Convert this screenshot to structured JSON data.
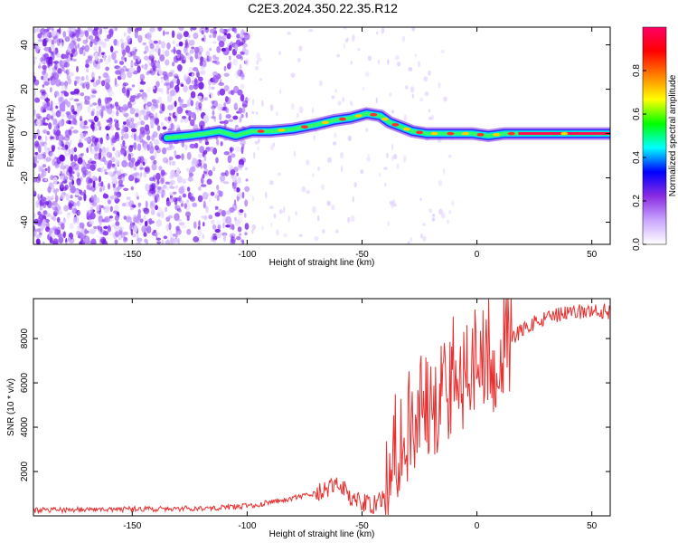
{
  "figure": {
    "title": "C2E3.2024.350.22.35.R12"
  },
  "chart_data": [
    {
      "type": "heatmap",
      "xlabel": "Height of straight line (km)",
      "ylabel": "Frequency (Hz)",
      "xlim": [
        -193,
        58
      ],
      "ylim": [
        -50,
        48
      ],
      "xticks": [
        -150,
        -100,
        -50,
        0,
        50
      ],
      "yticks": [
        -40,
        -20,
        0,
        20,
        40
      ],
      "colorbar": {
        "label": "Normalized spectral amplitude",
        "range": [
          0,
          1
        ],
        "ticks": [
          "0.0",
          "0.2",
          "0.4",
          "0.6",
          "0.8"
        ],
        "colors": [
          "#ffffff",
          "#c9a6ff",
          "#8a2be2",
          "#0000ff",
          "#00ffff",
          "#00ff00",
          "#ffff00",
          "#ff8000",
          "#ff0000",
          "#ff0066"
        ]
      },
      "ridge": {
        "x": [
          -135,
          -125,
          -118,
          -112,
          -105,
          -98,
          -90,
          -80,
          -70,
          -62,
          -55,
          -48,
          -42,
          -38,
          -33,
          -28,
          -22,
          -15,
          -8,
          -2,
          5,
          12,
          18,
          58
        ],
        "y": [
          -2,
          -1,
          0,
          1,
          -1,
          1,
          1,
          2,
          4,
          6,
          7,
          9,
          8,
          5,
          3,
          1,
          0,
          0,
          0,
          0,
          -1,
          0,
          0,
          0
        ]
      },
      "noise_region": {
        "x": [
          -193,
          -100
        ],
        "y": [
          -50,
          48
        ]
      }
    },
    {
      "type": "line",
      "xlabel": "Height of straight line (km)",
      "ylabel": "SNR (10 * v/v)",
      "xlim": [
        -193,
        58
      ],
      "ylim": [
        0,
        9800
      ],
      "xticks": [
        -150,
        -100,
        -50,
        0,
        50
      ],
      "yticks": [
        2000,
        4000,
        6000,
        8000
      ],
      "line_color": "#e83030",
      "series": [
        {
          "x": [
            -193,
            -170,
            -150,
            -130,
            -110,
            -100,
            -90,
            -80,
            -70,
            -65,
            -60,
            -55,
            -50,
            -45,
            -40,
            -38,
            -35,
            -32,
            -30,
            -28,
            -25,
            -22,
            -20,
            -18,
            -15,
            -12,
            -10,
            -8,
            -5,
            -2,
            0,
            3,
            5,
            8,
            10,
            15,
            20,
            25,
            30,
            35,
            40,
            45,
            50,
            55,
            58
          ],
          "y": [
            250,
            280,
            300,
            320,
            380,
            450,
            600,
            800,
            1000,
            1200,
            1500,
            800,
            600,
            500,
            800,
            2500,
            3500,
            2800,
            4200,
            3800,
            5500,
            4800,
            6000,
            5200,
            6200,
            5600,
            7000,
            5400,
            6800,
            6000,
            7600,
            6700,
            7400,
            7200,
            7600,
            8000,
            8400,
            8700,
            8900,
            9050,
            9150,
            9200,
            9250,
            9250,
            9200
          ]
        }
      ]
    }
  ]
}
